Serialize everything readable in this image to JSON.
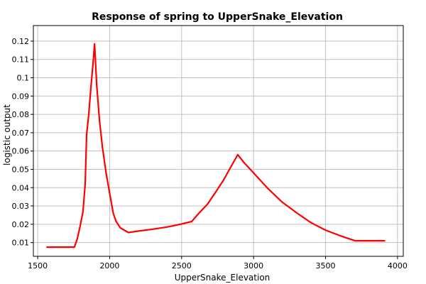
{
  "chart_data": {
    "type": "line",
    "title": "Response of spring to UpperSnake_Elevation",
    "xlabel": "UpperSnake_Elevation",
    "ylabel": "logistic output",
    "xlim": [
      1470,
      4040
    ],
    "ylim": [
      0.0025,
      0.1285
    ],
    "x_ticks": [
      1500,
      2000,
      2500,
      3000,
      3500,
      4000
    ],
    "y_ticks": [
      0.01,
      0.02,
      0.03,
      0.04,
      0.05,
      0.06,
      0.07,
      0.08,
      0.09,
      0.1,
      0.11,
      0.12
    ],
    "grid": true,
    "series_color": "#ff0000",
    "series": [
      {
        "x": [
          1565,
          1755,
          1775,
          1795,
          1815,
          1830,
          1840,
          1855,
          1870,
          1885,
          1895,
          1910,
          1930,
          1950,
          1975,
          2000,
          2025,
          2045,
          2075,
          2130,
          2200,
          2300,
          2400,
          2490,
          2570,
          2620,
          2680,
          2740,
          2790,
          2840,
          2890,
          2930,
          3000,
          3100,
          3200,
          3300,
          3400,
          3500,
          3600,
          3705,
          3910
        ],
        "y": [
          0.0075,
          0.0075,
          0.012,
          0.019,
          0.027,
          0.042,
          0.069,
          0.08,
          0.095,
          0.108,
          0.1185,
          0.096,
          0.076,
          0.062,
          0.048,
          0.037,
          0.026,
          0.0215,
          0.018,
          0.0155,
          0.0163,
          0.0173,
          0.0185,
          0.02,
          0.0215,
          0.026,
          0.031,
          0.038,
          0.044,
          0.051,
          0.058,
          0.054,
          0.048,
          0.0395,
          0.032,
          0.0262,
          0.0208,
          0.0168,
          0.0138,
          0.011,
          0.011
        ]
      }
    ]
  }
}
